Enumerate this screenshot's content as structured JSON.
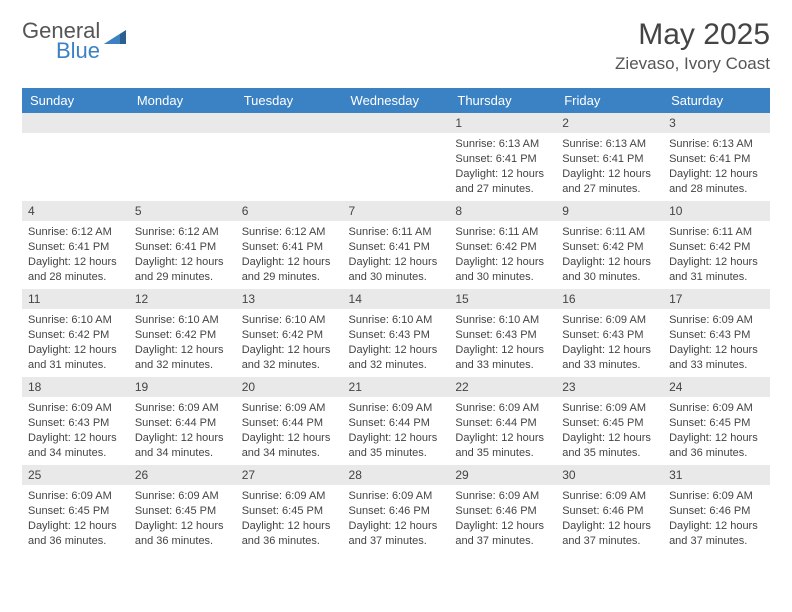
{
  "logo": {
    "general": "General",
    "blue": "Blue"
  },
  "header": {
    "title": "May 2025",
    "location": "Zievaso, Ivory Coast"
  },
  "colors": {
    "header_bg": "#3b82c4",
    "header_text": "#ffffff",
    "daynum_bg": "#e9e9e9",
    "text": "#444444",
    "logo_blue": "#3b82c4",
    "logo_gray": "#555555"
  },
  "weekdays": [
    "Sunday",
    "Monday",
    "Tuesday",
    "Wednesday",
    "Thursday",
    "Friday",
    "Saturday"
  ],
  "leading_blanks": 4,
  "days": [
    {
      "n": 1,
      "sunrise": "6:13 AM",
      "sunset": "6:41 PM",
      "daylight": "12 hours and 27 minutes."
    },
    {
      "n": 2,
      "sunrise": "6:13 AM",
      "sunset": "6:41 PM",
      "daylight": "12 hours and 27 minutes."
    },
    {
      "n": 3,
      "sunrise": "6:13 AM",
      "sunset": "6:41 PM",
      "daylight": "12 hours and 28 minutes."
    },
    {
      "n": 4,
      "sunrise": "6:12 AM",
      "sunset": "6:41 PM",
      "daylight": "12 hours and 28 minutes."
    },
    {
      "n": 5,
      "sunrise": "6:12 AM",
      "sunset": "6:41 PM",
      "daylight": "12 hours and 29 minutes."
    },
    {
      "n": 6,
      "sunrise": "6:12 AM",
      "sunset": "6:41 PM",
      "daylight": "12 hours and 29 minutes."
    },
    {
      "n": 7,
      "sunrise": "6:11 AM",
      "sunset": "6:41 PM",
      "daylight": "12 hours and 30 minutes."
    },
    {
      "n": 8,
      "sunrise": "6:11 AM",
      "sunset": "6:42 PM",
      "daylight": "12 hours and 30 minutes."
    },
    {
      "n": 9,
      "sunrise": "6:11 AM",
      "sunset": "6:42 PM",
      "daylight": "12 hours and 30 minutes."
    },
    {
      "n": 10,
      "sunrise": "6:11 AM",
      "sunset": "6:42 PM",
      "daylight": "12 hours and 31 minutes."
    },
    {
      "n": 11,
      "sunrise": "6:10 AM",
      "sunset": "6:42 PM",
      "daylight": "12 hours and 31 minutes."
    },
    {
      "n": 12,
      "sunrise": "6:10 AM",
      "sunset": "6:42 PM",
      "daylight": "12 hours and 32 minutes."
    },
    {
      "n": 13,
      "sunrise": "6:10 AM",
      "sunset": "6:42 PM",
      "daylight": "12 hours and 32 minutes."
    },
    {
      "n": 14,
      "sunrise": "6:10 AM",
      "sunset": "6:43 PM",
      "daylight": "12 hours and 32 minutes."
    },
    {
      "n": 15,
      "sunrise": "6:10 AM",
      "sunset": "6:43 PM",
      "daylight": "12 hours and 33 minutes."
    },
    {
      "n": 16,
      "sunrise": "6:09 AM",
      "sunset": "6:43 PM",
      "daylight": "12 hours and 33 minutes."
    },
    {
      "n": 17,
      "sunrise": "6:09 AM",
      "sunset": "6:43 PM",
      "daylight": "12 hours and 33 minutes."
    },
    {
      "n": 18,
      "sunrise": "6:09 AM",
      "sunset": "6:43 PM",
      "daylight": "12 hours and 34 minutes."
    },
    {
      "n": 19,
      "sunrise": "6:09 AM",
      "sunset": "6:44 PM",
      "daylight": "12 hours and 34 minutes."
    },
    {
      "n": 20,
      "sunrise": "6:09 AM",
      "sunset": "6:44 PM",
      "daylight": "12 hours and 34 minutes."
    },
    {
      "n": 21,
      "sunrise": "6:09 AM",
      "sunset": "6:44 PM",
      "daylight": "12 hours and 35 minutes."
    },
    {
      "n": 22,
      "sunrise": "6:09 AM",
      "sunset": "6:44 PM",
      "daylight": "12 hours and 35 minutes."
    },
    {
      "n": 23,
      "sunrise": "6:09 AM",
      "sunset": "6:45 PM",
      "daylight": "12 hours and 35 minutes."
    },
    {
      "n": 24,
      "sunrise": "6:09 AM",
      "sunset": "6:45 PM",
      "daylight": "12 hours and 36 minutes."
    },
    {
      "n": 25,
      "sunrise": "6:09 AM",
      "sunset": "6:45 PM",
      "daylight": "12 hours and 36 minutes."
    },
    {
      "n": 26,
      "sunrise": "6:09 AM",
      "sunset": "6:45 PM",
      "daylight": "12 hours and 36 minutes."
    },
    {
      "n": 27,
      "sunrise": "6:09 AM",
      "sunset": "6:45 PM",
      "daylight": "12 hours and 36 minutes."
    },
    {
      "n": 28,
      "sunrise": "6:09 AM",
      "sunset": "6:46 PM",
      "daylight": "12 hours and 37 minutes."
    },
    {
      "n": 29,
      "sunrise": "6:09 AM",
      "sunset": "6:46 PM",
      "daylight": "12 hours and 37 minutes."
    },
    {
      "n": 30,
      "sunrise": "6:09 AM",
      "sunset": "6:46 PM",
      "daylight": "12 hours and 37 minutes."
    },
    {
      "n": 31,
      "sunrise": "6:09 AM",
      "sunset": "6:46 PM",
      "daylight": "12 hours and 37 minutes."
    }
  ],
  "labels": {
    "sunrise": "Sunrise:",
    "sunset": "Sunset:",
    "daylight": "Daylight:"
  }
}
